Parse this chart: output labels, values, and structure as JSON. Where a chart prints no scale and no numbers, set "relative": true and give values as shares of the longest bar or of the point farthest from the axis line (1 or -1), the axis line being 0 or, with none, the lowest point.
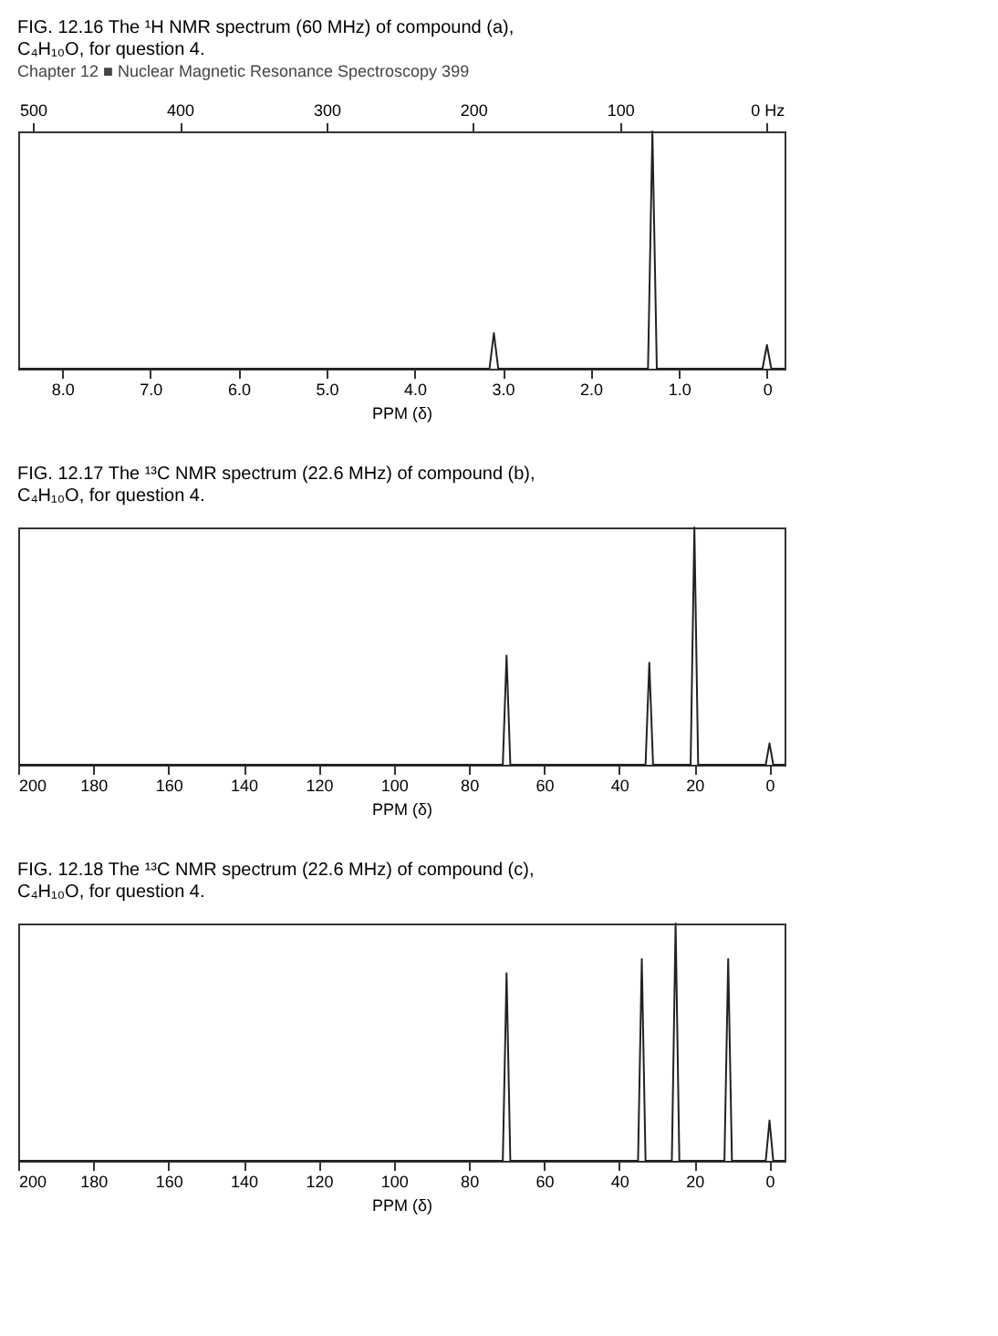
{
  "chart_data": [
    {
      "type": "line",
      "title": "FIG. 12.16 The ¹H NMR spectrum (60 MHz) of compound (a), C₄H₁₀O, for question 4.",
      "annotations": [
        "Chapter 12 ■ Nuclear Magnetic Resonance Spectroscopy",
        "399"
      ],
      "xlabel": "PPM (δ)",
      "relative": true,
      "xlim": [
        8.5,
        -0.2
      ],
      "xticks": [
        {
          "value": 8,
          "label": "8.0"
        },
        {
          "value": 7,
          "label": "7.0"
        },
        {
          "value": 6,
          "label": "6.0"
        },
        {
          "value": 5,
          "label": "5.0"
        },
        {
          "value": 4,
          "label": "4.0"
        },
        {
          "value": 3,
          "label": "3.0"
        },
        {
          "value": 2,
          "label": "2.0"
        },
        {
          "value": 1,
          "label": "1.0"
        },
        0
      ],
      "x2lim": [
        510,
        -12
      ],
      "x2ticks": [
        500,
        400,
        300,
        200,
        100,
        {
          "value": 0,
          "label": "0 Hz"
        }
      ],
      "grid": false,
      "tick_labels": "x",
      "series": [
        {
          "color": "#222222",
          "x": [
            8.5,
            3.15,
            3.1,
            3.05,
            1.35,
            1.3,
            1.25,
            0.05,
            0,
            -0.05,
            -0.2
          ],
          "values": [
            0,
            0,
            0.15,
            0,
            0,
            1,
            0,
            0,
            0.1,
            0,
            0
          ]
        }
      ]
    },
    {
      "type": "line",
      "title": "FIG. 12.17 The ¹³C NMR spectrum (22.6 MHz) of compound (b), C₄H₁₀O, for question 4.",
      "xlabel": "PPM (δ)",
      "relative": true,
      "xlim": [
        200,
        -4
      ],
      "xticks": [
        200,
        180,
        160,
        140,
        120,
        100,
        80,
        60,
        40,
        20,
        0
      ],
      "grid": false,
      "tick_labels": "x",
      "series": [
        {
          "color": "#222222",
          "x": [
            200,
            71,
            70,
            69,
            33,
            32,
            31,
            21,
            20,
            19,
            1,
            0,
            -1,
            -4
          ],
          "values": [
            0,
            0,
            0.46,
            0,
            0,
            0.43,
            0,
            0,
            1,
            0,
            0,
            0.09,
            0,
            0
          ]
        }
      ]
    },
    {
      "type": "line",
      "title": "FIG. 12.18 The ¹³C NMR spectrum (22.6 MHz) of compound (c), C₄H₁₀O, for question 4.",
      "xlabel": "PPM (δ)",
      "relative": true,
      "xlim": [
        200,
        -4
      ],
      "xticks": [
        200,
        180,
        160,
        140,
        120,
        100,
        80,
        60,
        40,
        20,
        0
      ],
      "grid": false,
      "tick_labels": "x",
      "series": [
        {
          "color": "#222222",
          "x": [
            200,
            71,
            70,
            69,
            35,
            34,
            33,
            26,
            25,
            24,
            12,
            11,
            10,
            1,
            0,
            -1,
            -4
          ],
          "values": [
            0,
            0,
            0.79,
            0,
            0,
            0.85,
            0,
            0,
            1,
            0,
            0,
            0.85,
            0,
            0,
            0.17,
            0,
            0
          ]
        }
      ]
    }
  ]
}
